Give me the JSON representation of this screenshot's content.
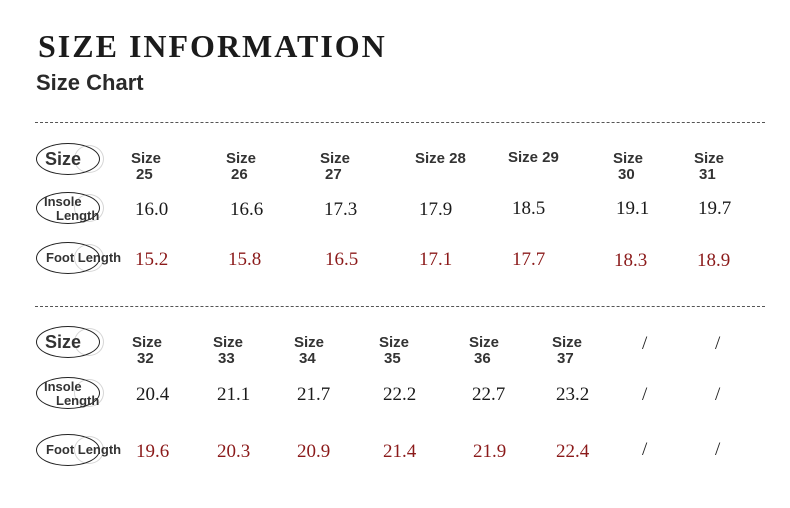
{
  "title": "SIZE INFORMATION",
  "subtitle": "Size Chart",
  "labels": {
    "size": "Size",
    "insole_line1": "Insole",
    "insole_line2": "Length",
    "foot_length": "Foot Length"
  },
  "table1": {
    "header_words": [
      "Size",
      "Size",
      "Size",
      "Size 28",
      "Size 29",
      "Size",
      "Size"
    ],
    "header_nums": [
      "25",
      "26",
      "27",
      "",
      "",
      "30",
      "31"
    ],
    "insole": [
      "16.0",
      "16.6",
      "17.3",
      "17.9",
      "18.5",
      "19.1",
      "19.7"
    ],
    "foot": [
      "15.2",
      "15.8",
      "16.5",
      "17.1",
      "17.7",
      "18.3",
      "18.9"
    ]
  },
  "table2": {
    "header_words": [
      "Size",
      "Size",
      "Size",
      "Size",
      "Size",
      "Size"
    ],
    "header_nums": [
      "32",
      "33",
      "34",
      "35",
      "36",
      "37"
    ],
    "insole": [
      "20.4",
      "21.1",
      "21.7",
      "22.2",
      "22.7",
      "23.2"
    ],
    "foot": [
      "19.6",
      "20.3",
      "20.9",
      "21.4",
      "21.9",
      "22.4"
    ],
    "empty_marks": [
      "/",
      "/"
    ]
  },
  "colors": {
    "foot_value": "#8b1a1a",
    "text": "#1a1a1a"
  }
}
